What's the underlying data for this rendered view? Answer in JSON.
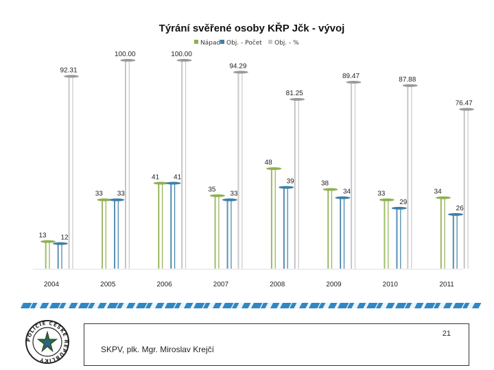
{
  "chart_data": {
    "type": "bar",
    "title": "Týrání svěřené osoby KŘP Jčk - vývoj",
    "categories": [
      "2004",
      "2005",
      "2006",
      "2007",
      "2008",
      "2009",
      "2010",
      "2011"
    ],
    "series": [
      {
        "name": "Nápad",
        "values": [
          13,
          33,
          41,
          35,
          48,
          38,
          33,
          34
        ],
        "labels": [
          "13",
          "33",
          "41",
          "35",
          "48",
          "38",
          "33",
          "34"
        ],
        "color": "#8fb050"
      },
      {
        "name": "Obj. - Počet",
        "values": [
          12,
          33,
          41,
          33,
          39,
          34,
          29,
          26
        ],
        "labels": [
          "12",
          "33",
          "41",
          "33",
          "39",
          "34",
          "29",
          "26"
        ],
        "color": "#3d7fa8"
      },
      {
        "name": "Obj. - %",
        "values": [
          92.31,
          100.0,
          100.0,
          94.29,
          81.25,
          89.47,
          87.88,
          76.47
        ],
        "labels": [
          "92.31",
          "100.00",
          "100.00",
          "94.29",
          "81.25",
          "89.47",
          "87.88",
          "76.47"
        ],
        "color": "#c8c8c8"
      }
    ],
    "ylim": [
      0,
      100
    ],
    "legend": "top-center",
    "grid": false
  },
  "footer": {
    "page_number": "21",
    "author": "SKPV, plk. Mgr. Miroslav Krejčí"
  },
  "logo": {
    "icon": "police-badge-icon",
    "text": "POLICIE ČESKÉ REPUBLIKY"
  }
}
